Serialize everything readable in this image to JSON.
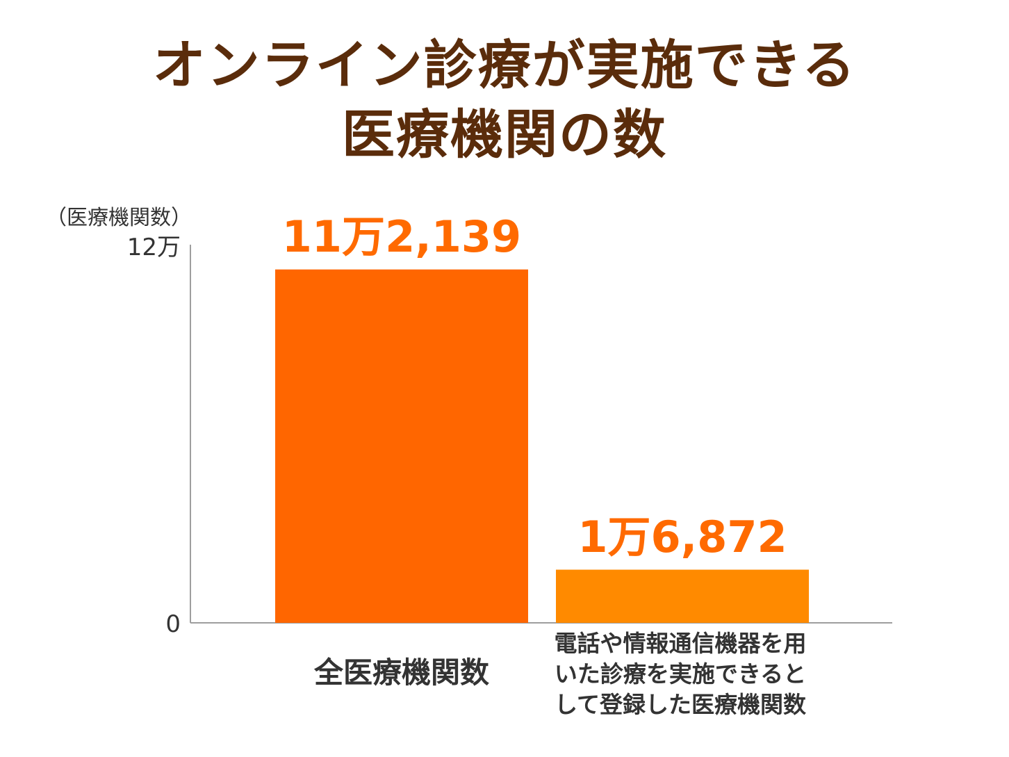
{
  "chart_data": {
    "type": "bar",
    "title": [
      "オンライン診療が実施できる",
      "医療機関の数"
    ],
    "ylabel": "（医療機関数）",
    "yticks": [
      "0",
      "12万"
    ],
    "ylim": [
      0,
      120000
    ],
    "categories": [
      "全医療機関数",
      "電話や情報通信機器を用いた診療を実施できるとして登録した医療機関数"
    ],
    "category_lines": [
      [
        "全医療機関数"
      ],
      [
        "電話や情報通信機器を用",
        "いた診療を実施できると",
        "して登録した医療機関数"
      ]
    ],
    "values": [
      112139,
      16872
    ],
    "value_labels": [
      "11万2,139",
      "1万6,872"
    ],
    "colors": [
      "#ff6600",
      "#ff8a00"
    ],
    "label_color": "#ff6a00",
    "title_color": "#5a2c0b",
    "grid": false
  }
}
